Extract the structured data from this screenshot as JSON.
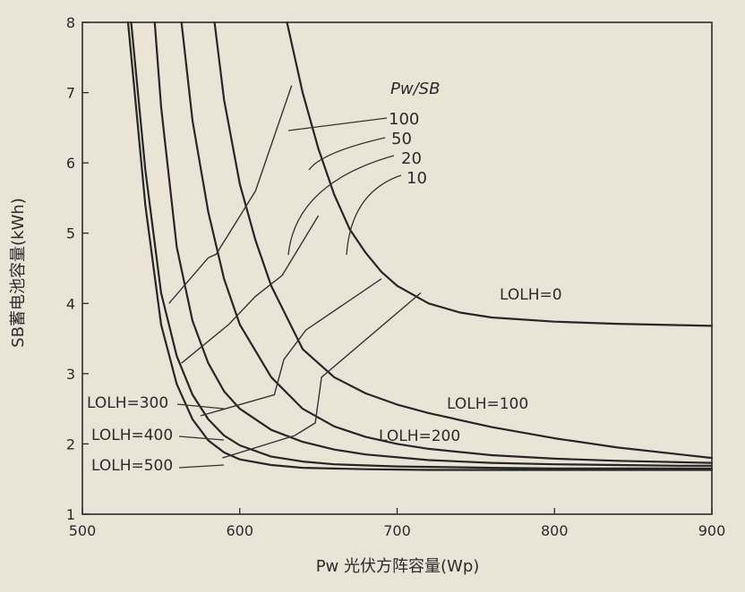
{
  "chart_data": {
    "type": "line",
    "xlabel": "Pw 光伏方阵容量(Wp)",
    "ylabel": "SB蓄电池容量(kWh)",
    "xlim": [
      500,
      900
    ],
    "ylim": [
      1,
      8
    ],
    "xticks": [
      500,
      600,
      700,
      800,
      900
    ],
    "yticks": [
      1,
      2,
      3,
      4,
      5,
      6,
      7,
      8
    ],
    "grid": false,
    "ratio_legend_title": "Pw/SB",
    "series": [
      {
        "name": "LOLH=0",
        "x": [
          630,
          640,
          650,
          660,
          670,
          680,
          690,
          700,
          720,
          740,
          760,
          800,
          840,
          880,
          900
        ],
        "y": [
          8.0,
          7.0,
          6.2,
          5.55,
          5.05,
          4.72,
          4.45,
          4.25,
          4.0,
          3.87,
          3.8,
          3.74,
          3.71,
          3.69,
          3.68
        ]
      },
      {
        "name": "LOLH=100",
        "x": [
          584,
          590,
          600,
          610,
          620,
          640,
          660,
          680,
          700,
          720,
          760,
          800,
          840,
          880,
          900
        ],
        "y": [
          8.0,
          6.9,
          5.7,
          4.9,
          4.25,
          3.35,
          2.95,
          2.72,
          2.56,
          2.44,
          2.24,
          2.08,
          1.95,
          1.85,
          1.8
        ]
      },
      {
        "name": "LOLH=200",
        "x": [
          563,
          570,
          580,
          590,
          600,
          620,
          640,
          660,
          680,
          700,
          720,
          760,
          800,
          840,
          880,
          900
        ],
        "y": [
          8.0,
          6.6,
          5.3,
          4.35,
          3.7,
          2.95,
          2.5,
          2.25,
          2.1,
          2.0,
          1.93,
          1.84,
          1.79,
          1.76,
          1.74,
          1.73
        ]
      },
      {
        "name": "LOLH=300",
        "x": [
          546,
          550,
          560,
          570,
          580,
          590,
          600,
          620,
          640,
          660,
          680,
          720,
          760,
          800,
          840,
          880,
          900
        ],
        "y": [
          8.0,
          6.8,
          4.8,
          3.75,
          3.15,
          2.75,
          2.5,
          2.2,
          2.03,
          1.92,
          1.85,
          1.77,
          1.73,
          1.71,
          1.7,
          1.69,
          1.69
        ]
      },
      {
        "name": "LOLH=400",
        "x": [
          531,
          540,
          550,
          560,
          570,
          580,
          590,
          600,
          620,
          640,
          660,
          700,
          760,
          800,
          860,
          900
        ],
        "y": [
          8.0,
          5.9,
          4.15,
          3.25,
          2.7,
          2.35,
          2.12,
          1.98,
          1.82,
          1.75,
          1.71,
          1.68,
          1.66,
          1.65,
          1.65,
          1.65
        ]
      },
      {
        "name": "LOLH=500",
        "x": [
          529,
          540,
          550,
          560,
          570,
          580,
          590,
          600,
          620,
          640,
          680,
          720,
          760,
          800,
          860,
          900
        ],
        "y": [
          8.0,
          5.4,
          3.7,
          2.85,
          2.35,
          2.05,
          1.88,
          1.78,
          1.7,
          1.66,
          1.64,
          1.63,
          1.63,
          1.63,
          1.63,
          1.63
        ]
      }
    ],
    "ratio_lines": [
      {
        "name": "100",
        "x": [
          555,
          580,
          585,
          610,
          633
        ],
        "y": [
          4.0,
          4.65,
          4.7,
          5.6,
          7.1
        ]
      },
      {
        "name": "50",
        "x": [
          563,
          593,
          610,
          627,
          650
        ],
        "y": [
          3.15,
          3.7,
          4.1,
          4.4,
          5.25
        ]
      },
      {
        "name": "20",
        "x": [
          575,
          622,
          628,
          642,
          690
        ],
        "y": [
          2.4,
          2.7,
          3.2,
          3.62,
          4.35
        ]
      },
      {
        "name": "10",
        "x": [
          589,
          635,
          648,
          652,
          715
        ],
        "y": [
          1.8,
          2.12,
          2.3,
          2.95,
          4.15
        ]
      }
    ],
    "ratio_labels": [
      "100",
      "50",
      "20",
      "10"
    ],
    "curve_labels": [
      "LOLH=0",
      "LOLH=100",
      "LOLH=200",
      "LOLH=300",
      "LOLH=400",
      "LOLH=500"
    ]
  }
}
